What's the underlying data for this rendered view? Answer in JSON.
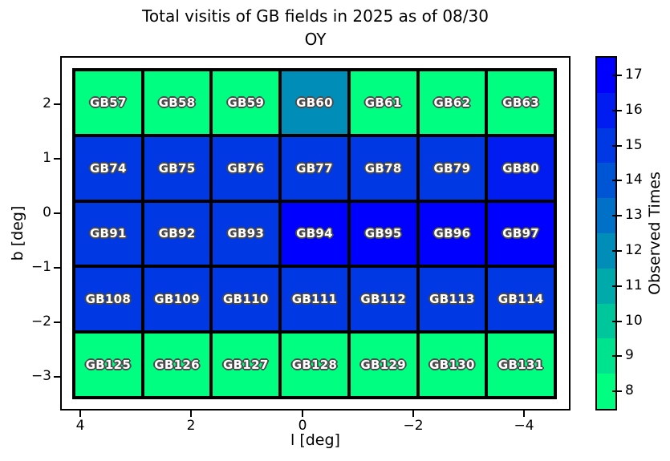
{
  "chart_data": {
    "type": "heatmap",
    "title_line1": "Total visitis of GB fields in 2025 as of 08/30",
    "title_line2": "OY",
    "xlabel": "l [deg]",
    "ylabel": "b [deg]",
    "colorbar_label": "Observed Times",
    "x_tick_labels": [
      "4",
      "2",
      "0",
      "−2",
      "−4"
    ],
    "y_tick_labels": [
      "2",
      "1",
      "0",
      "−1",
      "−2",
      "−3"
    ],
    "colorbar_tick_labels": [
      "8",
      "9",
      "10",
      "11",
      "12",
      "13",
      "14",
      "15",
      "16",
      "17"
    ],
    "value_range": [
      8,
      17
    ],
    "legend_position": "right",
    "grid": "off",
    "colormap": {
      "8": "#00FF80",
      "9": "#00E38E",
      "10": "#00C69C",
      "11": "#00AAAA",
      "12": "#008EB8",
      "13": "#0071C6",
      "14": "#0055D4",
      "15": "#0039E3",
      "16": "#001CF1",
      "17": "#0000FF"
    },
    "rows": [
      {
        "b_center": 2,
        "fields": [
          "GB57",
          "GB58",
          "GB59",
          "GB60",
          "GB61",
          "GB62",
          "GB63"
        ],
        "values": [
          8,
          8,
          8,
          12,
          8,
          8,
          8
        ]
      },
      {
        "b_center": 1,
        "fields": [
          "GB74",
          "GB75",
          "GB76",
          "GB77",
          "GB78",
          "GB79",
          "GB80"
        ],
        "values": [
          15,
          15,
          15,
          15,
          15,
          15,
          16
        ]
      },
      {
        "b_center": -0.4,
        "fields": [
          "GB91",
          "GB92",
          "GB93",
          "GB94",
          "GB95",
          "GB96",
          "GB97"
        ],
        "values": [
          15,
          15,
          15,
          17,
          17,
          17,
          17
        ]
      },
      {
        "b_center": -1.6,
        "fields": [
          "GB108",
          "GB109",
          "GB110",
          "GB111",
          "GB112",
          "GB113",
          "GB114"
        ],
        "values": [
          15,
          15,
          15,
          15,
          15,
          15,
          15
        ]
      },
      {
        "b_center": -2.8,
        "fields": [
          "GB125",
          "GB126",
          "GB127",
          "GB128",
          "GB129",
          "GB130",
          "GB131"
        ],
        "values": [
          8,
          8,
          8,
          8,
          8,
          8,
          8
        ]
      }
    ]
  }
}
